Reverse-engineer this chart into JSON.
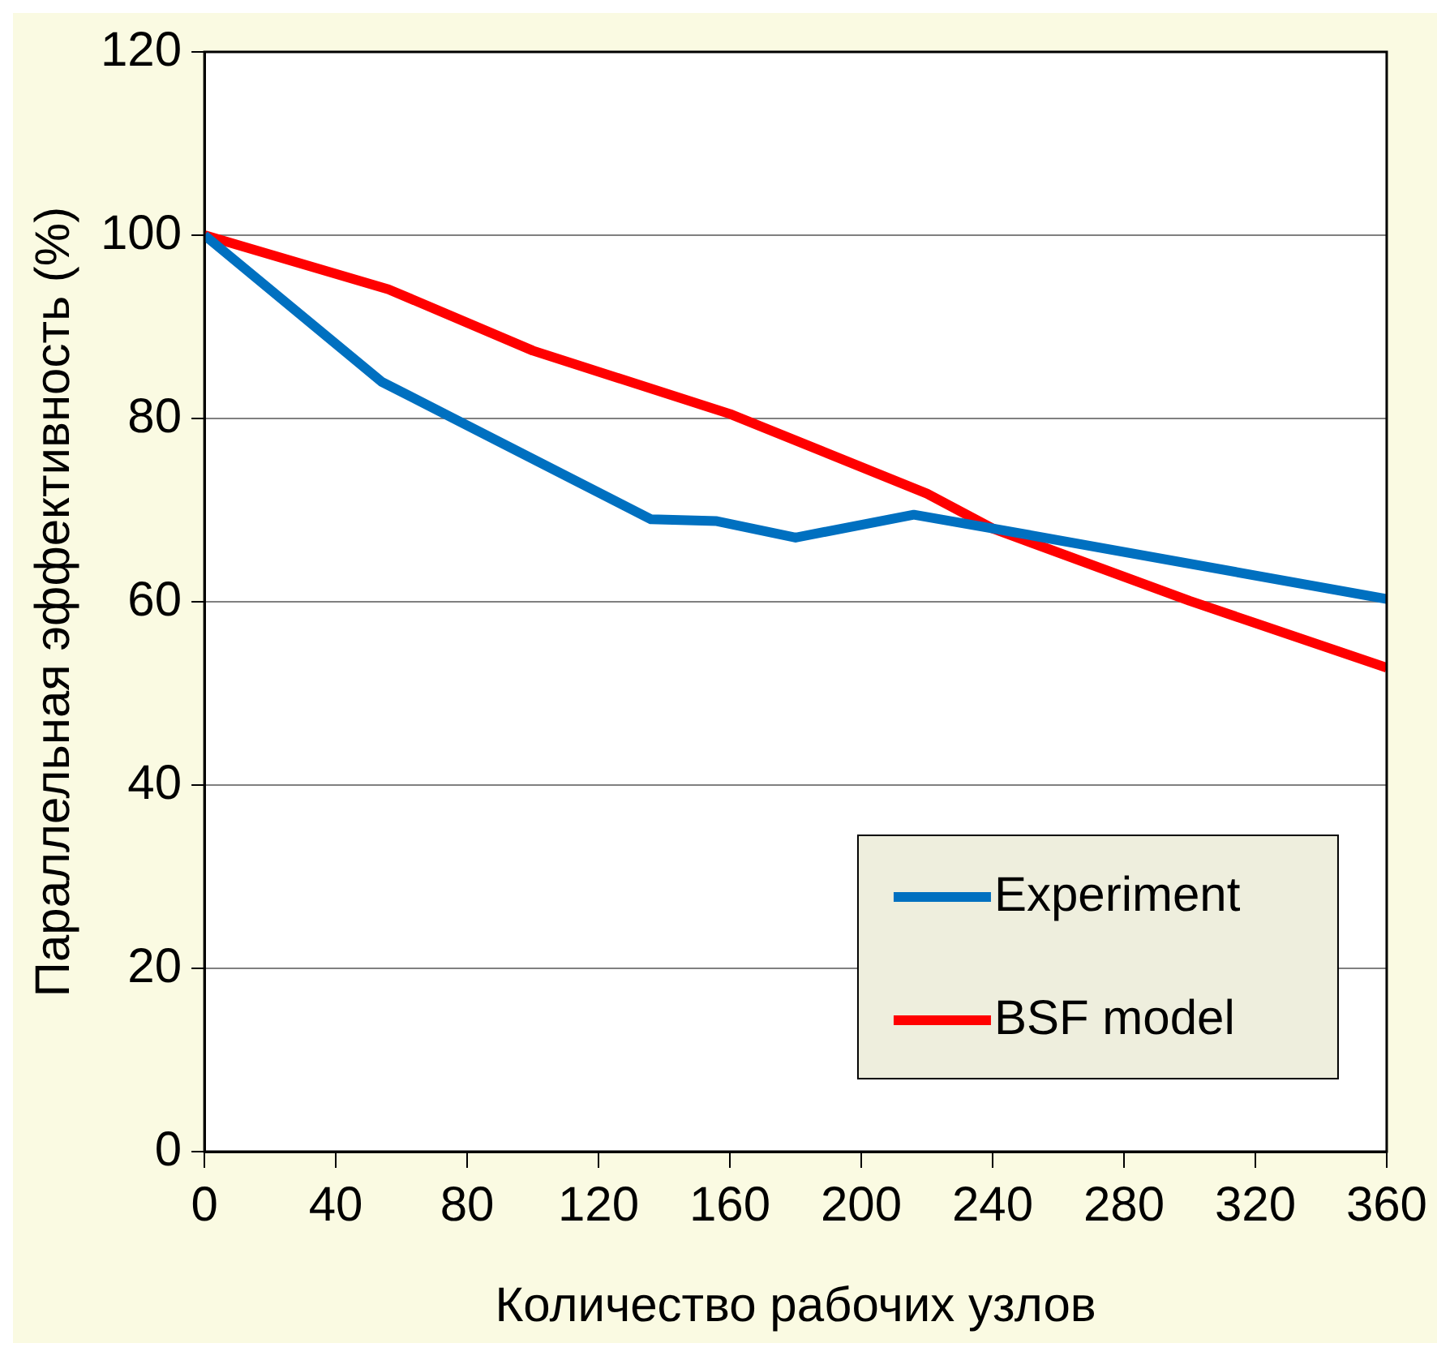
{
  "chart_data": {
    "type": "line",
    "xlabel": "Количество рабочих узлов",
    "ylabel": "Параллельная эффективность (%)",
    "xlim": [
      0,
      360
    ],
    "xticks": [
      0,
      40,
      80,
      120,
      160,
      200,
      240,
      280,
      320,
      360
    ],
    "ylim": [
      0,
      120
    ],
    "yticks": [
      0,
      20,
      40,
      60,
      80,
      100,
      120
    ],
    "grid": "y",
    "legend": "bottom right",
    "marker": "none",
    "line_style": "solid",
    "series": [
      {
        "name": "Experiment",
        "color": "#0070c0",
        "x": [
          0,
          54,
          136,
          156,
          180,
          216,
          240,
          360
        ],
        "values": [
          100,
          84,
          69,
          68.8,
          67,
          69.5,
          68,
          60.3
        ]
      },
      {
        "name": "BSF model",
        "color": "#ff0000",
        "x": [
          0,
          56,
          100,
          160,
          220,
          240,
          300,
          360
        ],
        "values": [
          100,
          94.1,
          87.4,
          80.5,
          71.8,
          68,
          60.1,
          52.8
        ]
      }
    ]
  }
}
